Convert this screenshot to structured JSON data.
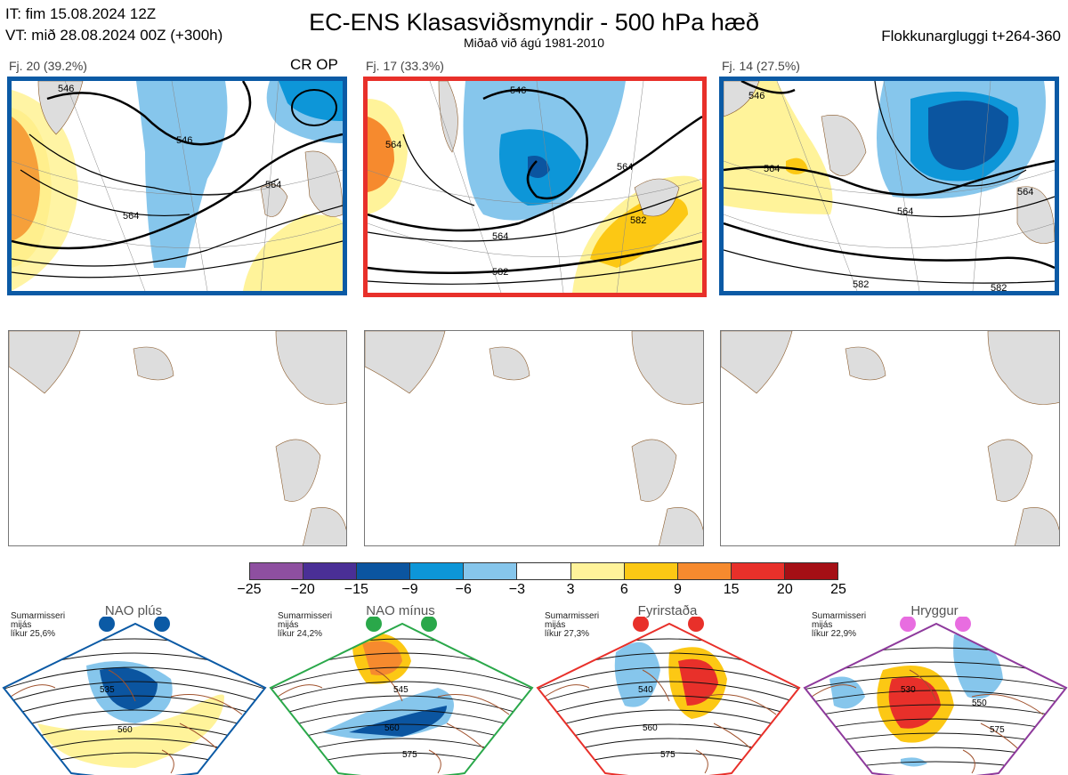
{
  "header": {
    "it_line": "IT: fim 15.08.2024 12Z",
    "vt_line": "VT: mið 28.08.2024 00Z  (+300h)",
    "title": "EC-ENS Klasasviðsmyndir - 500 hPa hæð",
    "subtitle": "Miðað við ágú 1981-2010",
    "window": "Flokkunargluggi t+264-360"
  },
  "clusters": [
    {
      "label": "Fj. 20 (39.2%)",
      "tag": "CR OP",
      "border_color": "#0b5aa5",
      "contours": [
        "546",
        "546",
        "564",
        "564"
      ]
    },
    {
      "label": "Fj. 17 (33.3%)",
      "tag": "",
      "border_color": "#e8302a",
      "contours": [
        "546",
        "564",
        "564",
        "564",
        "582",
        "582"
      ]
    },
    {
      "label": "Fj. 14 (27.5%)",
      "tag": "",
      "border_color": "#0b5aa5",
      "contours": [
        "546",
        "564",
        "564",
        "564",
        "582",
        "582"
      ]
    }
  ],
  "colorbar": {
    "ticks": [
      "−25",
      "−20",
      "−15",
      "−9",
      "−6",
      "−3",
      "3",
      "6",
      "9",
      "15",
      "20",
      "25"
    ],
    "colors": [
      "#8e4fa0",
      "#4a2f96",
      "#0b55a0",
      "#0d96d8",
      "#86c6ec",
      "#ffffff",
      "#fff39a",
      "#fcc814",
      "#f68a2e",
      "#e8302a",
      "#a50f15"
    ]
  },
  "regimes": [
    {
      "name": "NAO plús",
      "season": "Sumarmisseri",
      "mid": "mijás",
      "prob": "líkur 25,6%",
      "color": "#0b5aa5",
      "contours": [
        "535",
        "560"
      ]
    },
    {
      "name": "NAO mínus",
      "season": "Sumarmisseri",
      "mid": "mijás",
      "prob": "líkur 24,2%",
      "color": "#2aa84a",
      "contours": [
        "545",
        "560",
        "575"
      ]
    },
    {
      "name": "Fyrirstaða",
      "season": "Sumarmisseri",
      "mid": "mijás",
      "prob": "líkur 27,3%",
      "color": "#e8302a",
      "contours": [
        "540",
        "560",
        "575"
      ]
    },
    {
      "name": "Hryggur",
      "season": "Sumarmisseri",
      "mid": "mijás",
      "prob": "líkur 22,9%",
      "color": "#8e3a9c",
      "dot_color": "#e86de0",
      "contours": [
        "530",
        "550",
        "575"
      ]
    }
  ]
}
